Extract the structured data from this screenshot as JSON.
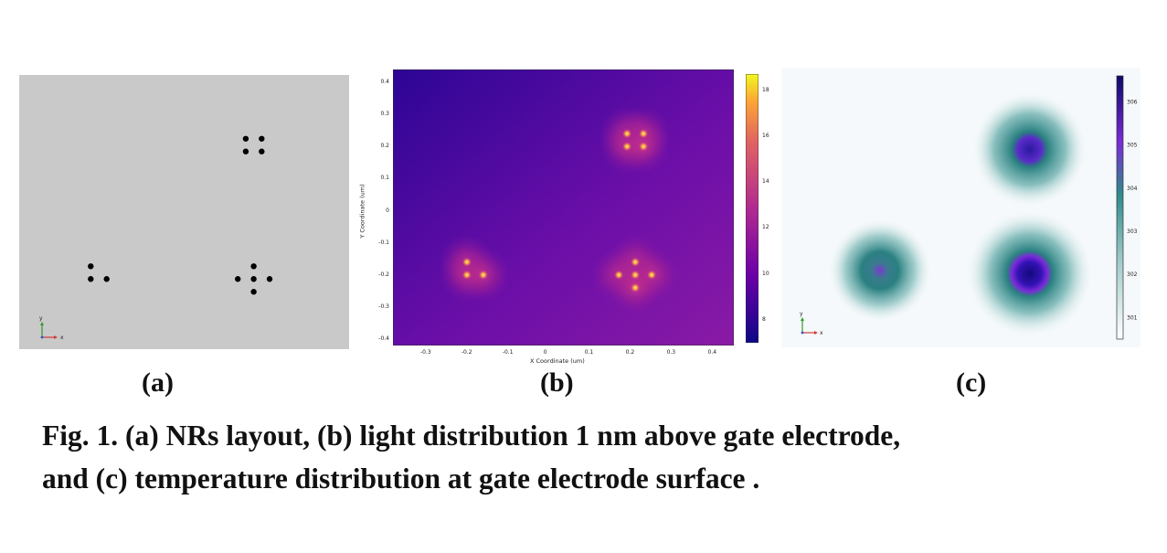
{
  "panels": [
    {
      "id": "a",
      "label": "(a)"
    },
    {
      "id": "b",
      "label": "(b)"
    },
    {
      "id": "c",
      "label": "(c)"
    }
  ],
  "caption": {
    "line1": "Fig. 1. (a) NRs layout, (b) light distribution 1 nm above gate electrode,",
    "line2": "and (c) temperature distribution at gate electrode surface ."
  },
  "axes_triad": {
    "x": "x",
    "y": "y"
  },
  "colors": {
    "layout_bg": "#c9c9c9",
    "nanorod": "#000000",
    "plasma_low": "#2c0595",
    "plasma_mid": "#7a11b0",
    "hotspot": "#ffb43c",
    "temp_low": "#ffffff",
    "temp_mid": "#2e8b8b",
    "temp_high": "#1a0a8c"
  },
  "chart_data": [
    {
      "type": "scatter",
      "panel": "a",
      "series": [
        {
          "x": [
            0.19,
            0.23,
            0.19,
            0.23,
            -0.2,
            -0.2,
            -0.16,
            0.21,
            0.17,
            0.21,
            0.25,
            0.21
          ],
          "y": [
            0.24,
            0.24,
            0.2,
            0.2,
            -0.16,
            -0.2,
            -0.2,
            -0.16,
            -0.2,
            -0.2,
            -0.2,
            -0.24
          ]
        }
      ]
    },
    {
      "type": "heatmap",
      "panel": "b",
      "xlabel": "X Coordinate (um)",
      "ylabel": "Y Coordinate (um)",
      "xlim": [
        -0.38,
        0.45
      ],
      "ylim": [
        -0.42,
        0.44
      ],
      "xticks": [
        "-0.3",
        "-0.2",
        "-0.1",
        "0",
        "0.1",
        "0.2",
        "0.3",
        "0.4"
      ],
      "yticks": [
        "0.4",
        "0.3",
        "0.2",
        "0.1",
        "0",
        "-0.1",
        "-0.2",
        "-0.3",
        "-0.4"
      ],
      "colorbar": {
        "ticks": [
          "18",
          "16",
          "14",
          "12",
          "10",
          "8"
        ],
        "range": [
          7,
          18.7
        ],
        "cmap": "plasma"
      },
      "hotspots": {
        "x": [
          0.19,
          0.23,
          0.19,
          0.23,
          -0.2,
          -0.2,
          -0.16,
          0.21,
          0.17,
          0.21,
          0.25,
          0.21
        ],
        "y": [
          0.24,
          0.24,
          0.2,
          0.2,
          -0.16,
          -0.2,
          -0.2,
          -0.16,
          -0.2,
          -0.2,
          -0.2,
          -0.24
        ]
      }
    },
    {
      "type": "heatmap",
      "panel": "c",
      "colorbar": {
        "ticks": [
          "306",
          "305",
          "304",
          "303",
          "302",
          "301"
        ],
        "range": [
          300.5,
          306.6
        ]
      },
      "hot_regions": [
        {
          "x": 0.21,
          "y": 0.2,
          "peak": 305.3
        },
        {
          "x": -0.19,
          "y": -0.19,
          "peak": 304.2
        },
        {
          "x": 0.21,
          "y": -0.2,
          "peak": 306.4
        }
      ]
    }
  ]
}
